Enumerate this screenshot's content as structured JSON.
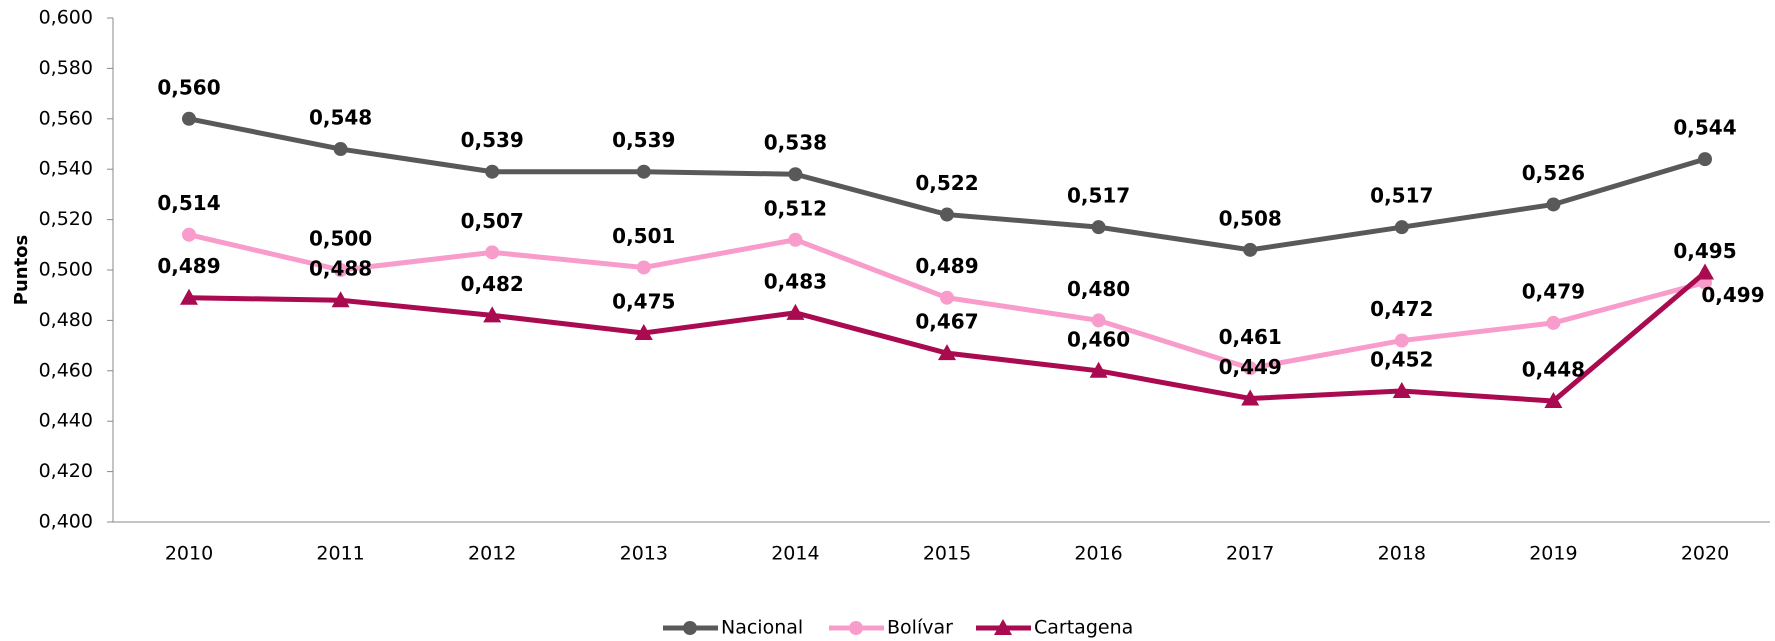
{
  "chart_data": {
    "type": "line",
    "y_label": "Puntos",
    "categories": [
      "2010",
      "2011",
      "2012",
      "2013",
      "2014",
      "2015",
      "2016",
      "2017",
      "2018",
      "2019",
      "2020"
    ],
    "series": [
      {
        "name": "Nacional",
        "color": "#595959",
        "marker": "circle",
        "values": [
          0.56,
          0.548,
          0.539,
          0.539,
          0.538,
          0.522,
          0.517,
          0.508,
          0.517,
          0.526,
          0.544
        ],
        "value_labels": [
          "0,560",
          "0,548",
          "0,539",
          "0,539",
          "0,538",
          "0,522",
          "0,517",
          "0,508",
          "0,517",
          "0,526",
          "0,544"
        ]
      },
      {
        "name": "Bolívar",
        "color": "#f89ccb",
        "marker": "circle",
        "values": [
          0.514,
          0.5,
          0.507,
          0.501,
          0.512,
          0.489,
          0.48,
          0.461,
          0.472,
          0.479,
          0.495
        ],
        "value_labels": [
          "0,514",
          "0,500",
          "0,507",
          "0,501",
          "0,512",
          "0,489",
          "0,480",
          "0,461",
          "0,472",
          "0,479",
          "0,495"
        ]
      },
      {
        "name": "Cartagena",
        "color": "#a90a50",
        "marker": "triangle",
        "values": [
          0.489,
          0.488,
          0.482,
          0.475,
          0.483,
          0.467,
          0.46,
          0.449,
          0.452,
          0.448,
          0.499
        ],
        "value_labels": [
          "0,489",
          "0,488",
          "0,482",
          "0,475",
          "0,483",
          "0,467",
          "0,460",
          "0,449",
          "0,452",
          "0,448",
          "0,499"
        ]
      }
    ],
    "ylim": [
      0.4,
      0.6
    ],
    "yticks": [
      {
        "value": 0.4,
        "label": "0,400"
      },
      {
        "value": 0.42,
        "label": "0,420"
      },
      {
        "value": 0.44,
        "label": "0,440"
      },
      {
        "value": 0.46,
        "label": "0,460"
      },
      {
        "value": 0.48,
        "label": "0,480"
      },
      {
        "value": 0.5,
        "label": "0,500"
      },
      {
        "value": 0.52,
        "label": "0,520"
      },
      {
        "value": 0.54,
        "label": "0,540"
      },
      {
        "value": 0.56,
        "label": "0,560"
      },
      {
        "value": 0.58,
        "label": "0,580"
      },
      {
        "value": 0.6,
        "label": "0,600"
      }
    ],
    "grid": false,
    "legend": "bottom"
  }
}
